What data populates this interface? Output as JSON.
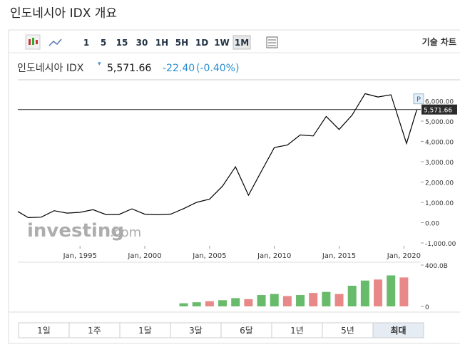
{
  "header": {
    "title": "인도네시아 IDX 개요"
  },
  "toolbar": {
    "intervals": [
      "1",
      "5",
      "15",
      "30",
      "1H",
      "5H",
      "1D",
      "1W",
      "1M"
    ],
    "selected_interval": "1M",
    "technical": "기술 차트"
  },
  "quote": {
    "name": "인도네시아 IDX",
    "price": "5,571.66",
    "change": "-22.40",
    "change_pct": "(-0.40%)"
  },
  "chart_data": [
    {
      "type": "line",
      "color": "#000000",
      "grid": false,
      "x": [
        1990.2,
        1991,
        1992,
        1993,
        1994,
        1995,
        1996,
        1997,
        1998,
        1999,
        2000,
        2001,
        2002,
        2003,
        2004,
        2005,
        2006,
        2007,
        2008,
        2009,
        2010,
        2011,
        2012,
        2013,
        2014,
        2015,
        2016,
        2017,
        2018,
        2019,
        2020.2,
        2021
      ],
      "values": [
        550,
        250,
        270,
        590,
        470,
        510,
        640,
        400,
        400,
        680,
        416,
        390,
        420,
        690,
        1000,
        1160,
        1800,
        2750,
        1350,
        2530,
        3700,
        3820,
        4320,
        4270,
        5230,
        4590,
        5300,
        6350,
        6190,
        6300,
        3900,
        5571.66
      ],
      "xlim": [
        1990.2,
        2021.3
      ],
      "xticks": [
        {
          "value": 1995,
          "label": "Jan, 1995"
        },
        {
          "value": 2000,
          "label": "Jan, 2000"
        },
        {
          "value": 2005,
          "label": "Jan, 2005"
        },
        {
          "value": 2010,
          "label": "Jan, 2010"
        },
        {
          "value": 2015,
          "label": "Jan, 2015"
        },
        {
          "value": 2020,
          "label": "Jan, 2020"
        }
      ],
      "ylim": [
        -1000,
        7000
      ],
      "yticks": [
        {
          "value": -1000,
          "label": "-1,000.00"
        },
        {
          "value": 0,
          "label": "0.00"
        },
        {
          "value": 1000,
          "label": "1,000.00"
        },
        {
          "value": 2000,
          "label": "2,000.00"
        },
        {
          "value": 3000,
          "label": "3,000.00"
        },
        {
          "value": 4000,
          "label": "4,000.00"
        },
        {
          "value": 5000,
          "label": "5,000.00"
        },
        {
          "value": 6000,
          "label": "6,000.00"
        }
      ],
      "last": {
        "value": 5571.66,
        "label": "5,571.66"
      },
      "marker": "P",
      "watermark": "investing",
      "watermark_suffix": ".com"
    },
    {
      "type": "bar",
      "xlim": [
        1990.2,
        2021.3
      ],
      "x": [
        2003,
        2004,
        2005,
        2006,
        2007,
        2008,
        2009,
        2010,
        2011,
        2012,
        2013,
        2014,
        2015,
        2016,
        2017,
        2018,
        2019,
        2020
      ],
      "values": [
        30,
        40,
        50,
        60,
        80,
        70,
        110,
        120,
        100,
        110,
        130,
        140,
        120,
        200,
        250,
        260,
        300,
        280
      ],
      "colors": [
        "#4caf50",
        "#4caf50",
        "#e57373",
        "#4caf50",
        "#4caf50",
        "#e57373",
        "#4caf50",
        "#4caf50",
        "#e57373",
        "#4caf50",
        "#e57373",
        "#4caf50",
        "#e57373",
        "#4caf50",
        "#4caf50",
        "#e57373",
        "#4caf50",
        "#e57373"
      ],
      "ylim": [
        0,
        400
      ],
      "yticks": [
        {
          "value": 0,
          "label": "0"
        },
        {
          "value": 400,
          "label": "400.0B"
        }
      ]
    }
  ],
  "ranges": {
    "items": [
      "1일",
      "1주",
      "1달",
      "3달",
      "6달",
      "1년",
      "5년",
      "최대"
    ],
    "selected": "최대"
  }
}
